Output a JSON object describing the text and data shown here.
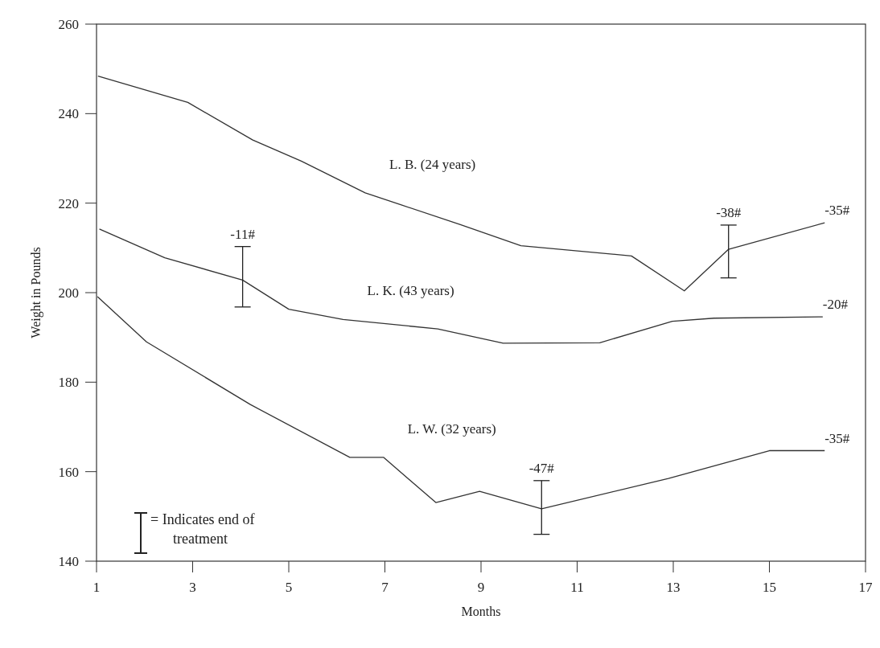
{
  "chart_data": {
    "type": "line",
    "xlabel": "Months",
    "ylabel": "Weight in Pounds",
    "xlim": [
      1,
      17
    ],
    "xticks": [
      1,
      3,
      5,
      7,
      9,
      11,
      13,
      15,
      17
    ],
    "ylim": [
      140,
      260
    ],
    "yticks": [
      140,
      160,
      180,
      200,
      220,
      240,
      260
    ],
    "grid": false,
    "marker": "none",
    "line_style": "solid",
    "series": [
      {
        "name": "L. B.  (24 years)",
        "color": "#333333",
        "x": [
          1.03,
          2.9,
          4.25,
          5.26,
          6.59,
          8.57,
          9.83,
          12.13,
          13.23,
          14.15,
          16.15
        ],
        "values": [
          248.4,
          242.5,
          234.1,
          229.4,
          222.3,
          215.2,
          210.5,
          208.2,
          200.4,
          209.7,
          215.6
        ],
        "errors": [
          null,
          null,
          null,
          null,
          null,
          null,
          null,
          null,
          null,
          [
            203.3,
            215.1
          ],
          null
        ]
      },
      {
        "name": "L.  K.  (43 years)",
        "color": "#333333",
        "x": [
          1.06,
          2.42,
          4.04,
          5.0,
          6.13,
          8.1,
          9.46,
          11.47,
          12.98,
          13.85,
          16.11
        ],
        "values": [
          214.2,
          207.8,
          202.8,
          196.3,
          194,
          191.9,
          188.7,
          188.8,
          193.6,
          194.3,
          194.6
        ],
        "errors": [
          null,
          null,
          [
            196.8,
            210.3
          ],
          null,
          null,
          null,
          null,
          null,
          null,
          null,
          null
        ]
      },
      {
        "name": "L. W.  (32 years)",
        "color": "#333333",
        "x": [
          1.02,
          2.04,
          4.2,
          6.27,
          6.97,
          8.06,
          8.97,
          10.26,
          12.9,
          15,
          16.15
        ],
        "values": [
          199.1,
          189,
          175,
          163.2,
          163.2,
          153.1,
          155.6,
          151.7,
          158.5,
          164.7,
          164.7
        ],
        "errors": [
          null,
          null,
          null,
          null,
          null,
          null,
          null,
          [
            146,
            158
          ],
          null,
          null,
          null
        ]
      }
    ],
    "annotations": [
      {
        "text": "-11#",
        "x": 4.04,
        "y": 210.3
      },
      {
        "text": "-38#",
        "x": 14.15,
        "y": 215.1
      },
      {
        "text": "-47#",
        "x": 10.26,
        "y": 158
      },
      {
        "text": "-35#",
        "x": 16.15,
        "y": 215.6
      },
      {
        "text": "-20#",
        "x": 16.11,
        "y": 194.6
      },
      {
        "text": "-35#",
        "x": 16.15,
        "y": 164.7
      },
      "= Indicates end of treatment"
    ]
  }
}
